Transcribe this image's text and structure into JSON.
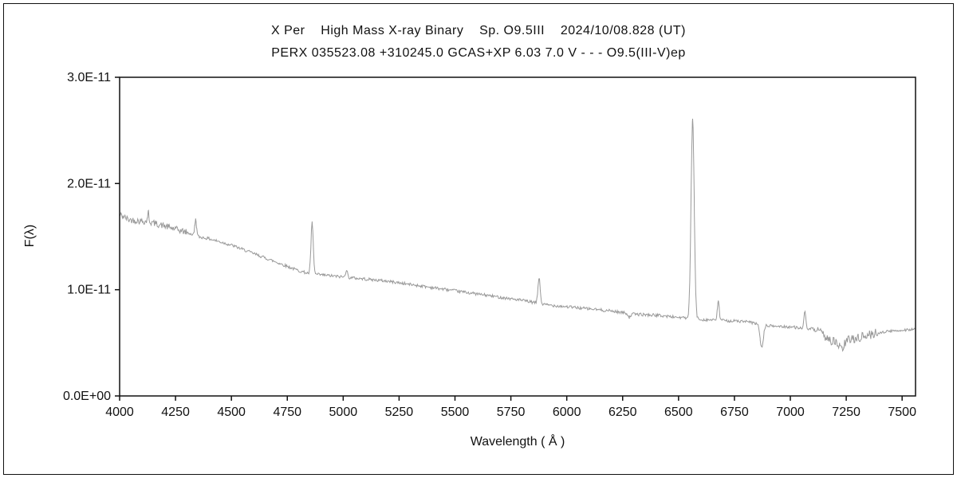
{
  "chart_data": {
    "type": "line",
    "title1": "X Per    High Mass X-ray Binary    Sp. O9.5III    2024/10/08.828 (UT)",
    "title2": "PERX 035523.08 +310245.0 GCAS+XP 6.03 7.0 V - - - O9.5(III-V)ep",
    "xlabel": "Wavelength ( Å )",
    "ylabel": "F(λ)",
    "xlim": [
      4000,
      7560
    ],
    "ylim": [
      0,
      3.0
    ],
    "x_ticks": [
      4000,
      4250,
      4500,
      4750,
      5000,
      5250,
      5500,
      5750,
      6000,
      6250,
      6500,
      6750,
      7000,
      7250,
      7500
    ],
    "y_ticks": [
      {
        "value": 0,
        "label": "0.0E+00"
      },
      {
        "value": 1,
        "label": "1.0E-11"
      },
      {
        "value": 2,
        "label": "2.0E-11"
      },
      {
        "value": 3,
        "label": "3.0E-11"
      }
    ],
    "flux_unit_per_label": "E-11",
    "grid": false,
    "legend": "none",
    "colors": {
      "line": "#999999",
      "frame": "#111111",
      "background": "#ffffff"
    },
    "continuum_points_x_flux1e11": [
      [
        4000,
        1.71
      ],
      [
        4040,
        1.66
      ],
      [
        4080,
        1.65
      ],
      [
        4130,
        1.64
      ],
      [
        4200,
        1.6
      ],
      [
        4250,
        1.57
      ],
      [
        4300,
        1.54
      ],
      [
        4350,
        1.5
      ],
      [
        4400,
        1.48
      ],
      [
        4450,
        1.45
      ],
      [
        4500,
        1.42
      ],
      [
        4550,
        1.38
      ],
      [
        4600,
        1.34
      ],
      [
        4650,
        1.3
      ],
      [
        4700,
        1.26
      ],
      [
        4750,
        1.22
      ],
      [
        4800,
        1.18
      ],
      [
        4850,
        1.15
      ],
      [
        4900,
        1.14
      ],
      [
        4950,
        1.13
      ],
      [
        5000,
        1.12
      ],
      [
        5100,
        1.1
      ],
      [
        5200,
        1.08
      ],
      [
        5300,
        1.05
      ],
      [
        5400,
        1.02
      ],
      [
        5500,
        0.99
      ],
      [
        5600,
        0.96
      ],
      [
        5700,
        0.93
      ],
      [
        5800,
        0.9
      ],
      [
        5900,
        0.86
      ],
      [
        6000,
        0.84
      ],
      [
        6100,
        0.82
      ],
      [
        6200,
        0.8
      ],
      [
        6300,
        0.77
      ],
      [
        6400,
        0.76
      ],
      [
        6500,
        0.74
      ],
      [
        6600,
        0.72
      ],
      [
        6700,
        0.71
      ],
      [
        6800,
        0.7
      ],
      [
        6900,
        0.66
      ],
      [
        7000,
        0.65
      ],
      [
        7100,
        0.63
      ],
      [
        7150,
        0.57
      ],
      [
        7200,
        0.5
      ],
      [
        7250,
        0.52
      ],
      [
        7300,
        0.55
      ],
      [
        7350,
        0.57
      ],
      [
        7400,
        0.6
      ],
      [
        7450,
        0.61
      ],
      [
        7500,
        0.62
      ],
      [
        7560,
        0.63
      ]
    ],
    "features": [
      {
        "name": "emission-4130",
        "kind": "emission",
        "center": 4128,
        "peak": 1.73,
        "sigma": 3
      },
      {
        "name": "emission-4340",
        "kind": "emission",
        "center": 4340,
        "peak": 1.66,
        "sigma": 4
      },
      {
        "name": "emission-4861",
        "kind": "emission",
        "center": 4861,
        "peak": 1.63,
        "sigma": 5
      },
      {
        "name": "emission-5015",
        "kind": "emission",
        "center": 5015,
        "peak": 1.19,
        "sigma": 4
      },
      {
        "name": "emission-5876",
        "kind": "emission",
        "center": 5876,
        "peak": 1.11,
        "sigma": 5
      },
      {
        "name": "emission-6563",
        "kind": "emission",
        "center": 6563,
        "peak": 2.6,
        "sigma": 7
      },
      {
        "name": "emission-6678",
        "kind": "emission",
        "center": 6678,
        "peak": 0.9,
        "sigma": 4
      },
      {
        "name": "emission-7065",
        "kind": "emission",
        "center": 7065,
        "peak": 0.79,
        "sigma": 4
      },
      {
        "name": "absorption-6280",
        "kind": "absorption",
        "center": 6280,
        "peak": 0.74,
        "sigma": 5
      },
      {
        "name": "absorption-6870",
        "kind": "absorption",
        "center": 6872,
        "peak": 0.45,
        "sigma": 7
      },
      {
        "name": "absorption-7230",
        "kind": "absorption",
        "center": 7230,
        "peak": 0.44,
        "sigma": 10
      }
    ],
    "noise": {
      "default_amp": 0.014,
      "regions": [
        [
          4000,
          4300,
          0.03
        ],
        [
          7120,
          7400,
          0.045
        ]
      ]
    }
  }
}
